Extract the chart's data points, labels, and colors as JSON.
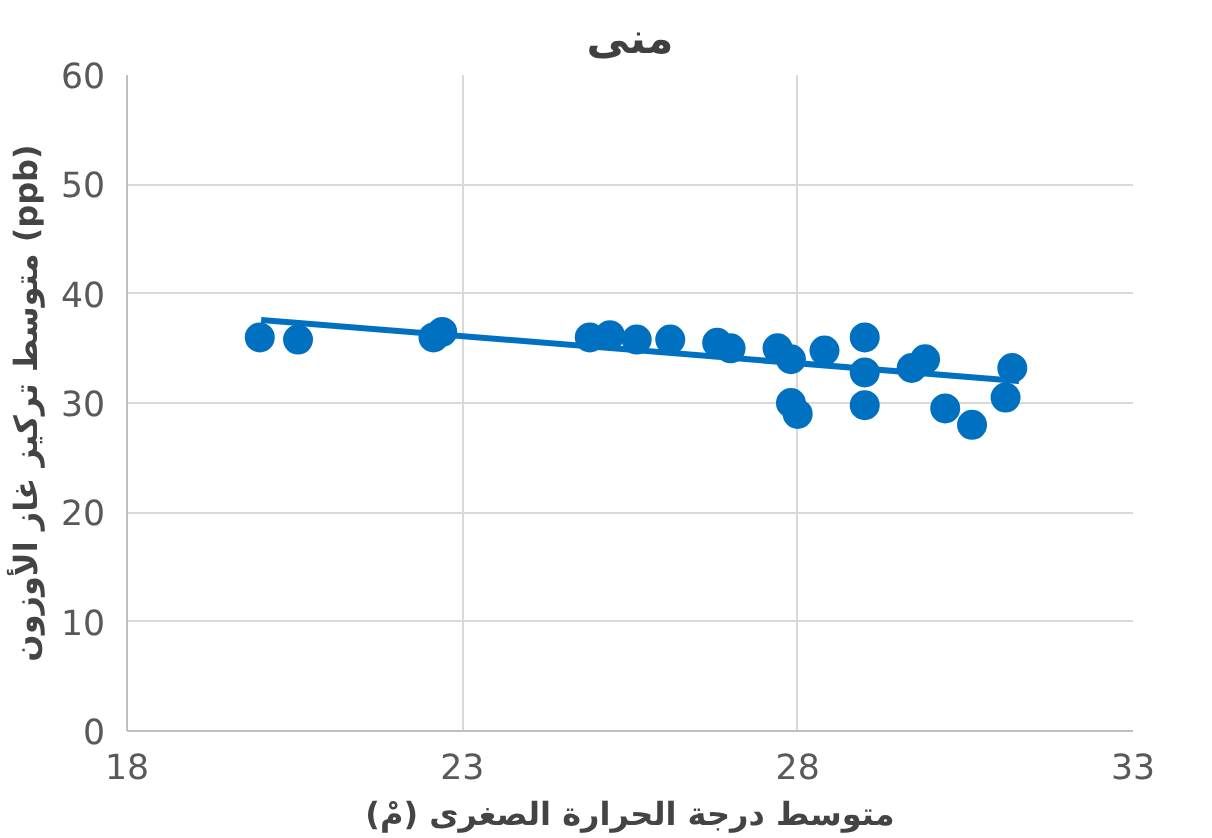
{
  "chart_data": {
    "type": "scatter",
    "title": "منى",
    "xlabel": "متوسط درجة الحرارة الصغرى (مْ)",
    "ylabel": "متوسط تركيز غاز الأوزون (ppb)",
    "xlim": [
      18,
      33
    ],
    "xticks": [
      18,
      23,
      28,
      33
    ],
    "ylim": [
      0,
      60
    ],
    "yticks": [
      0,
      10,
      20,
      30,
      40,
      50,
      60
    ],
    "grid": true,
    "series": [
      {
        "marker": "circle",
        "color": "#0070c0",
        "x": [
          19.98,
          20.55,
          22.57,
          22.7,
          24.9,
          25.2,
          25.6,
          26.1,
          26.8,
          27.0,
          27.7,
          27.9,
          27.9,
          28.0,
          28.4,
          29.0,
          29.0,
          29.0,
          29.7,
          29.9,
          30.2,
          30.6,
          31.1,
          31.2
        ],
        "values": [
          36,
          35.8,
          36,
          36.5,
          36,
          36.2,
          35.8,
          35.8,
          35.5,
          35,
          35,
          34,
          30,
          29,
          34.8,
          36,
          32.8,
          29.8,
          33.2,
          34,
          29.5,
          28,
          30.5,
          33.2
        ]
      },
      {
        "type": "line",
        "color": "#0070c0",
        "x": [
          20,
          31.3
        ],
        "values": [
          37.6,
          32
        ]
      }
    ]
  }
}
